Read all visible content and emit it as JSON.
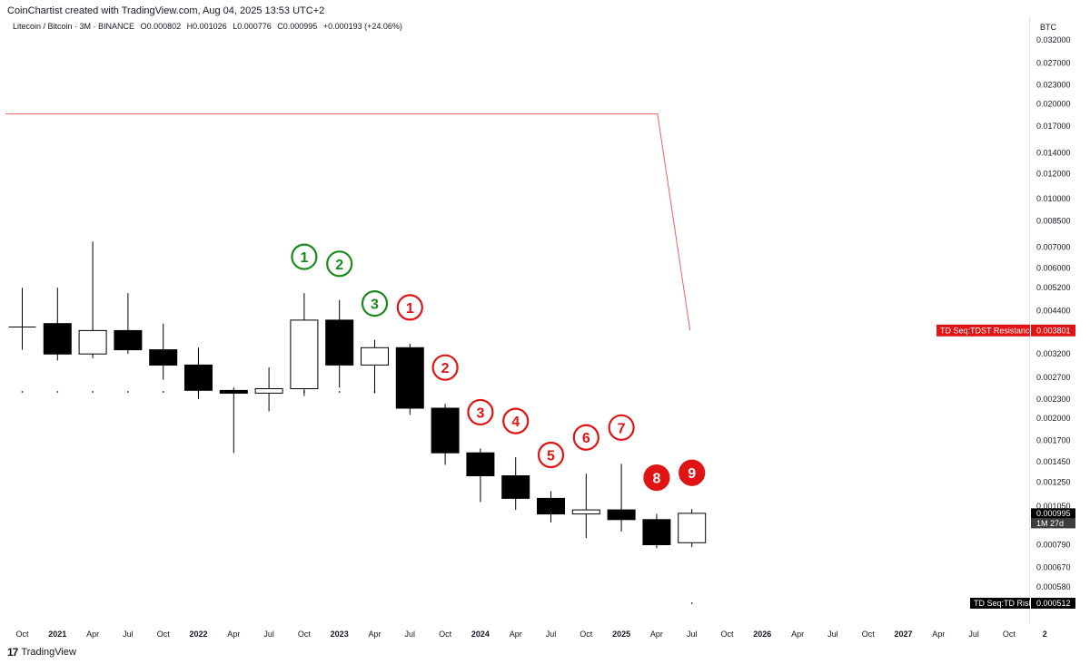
{
  "header": {
    "attribution": "CoinChartist created with TradingView.com, Aug 04, 2025 13:53 UTC+2",
    "symbol": "Litecoin / Bitcoin · 3M · BINANCE",
    "open": "O0.000802",
    "high": "H0.001026",
    "low": "L0.000776",
    "close": "C0.000995",
    "change": "+0.000193 (+24.06%)"
  },
  "footer": {
    "logo_text": "TradingView"
  },
  "colors": {
    "bear": "#000000",
    "bull": "#ffffff",
    "setup_buy": "#1a8a1a",
    "countdown": "#e01414",
    "resistance_line": "#f06060",
    "price_tag": "#000000",
    "resistance_tag": "#e01414"
  },
  "chart_data": {
    "type": "candlestick",
    "y_axis_unit": "BTC",
    "y_scale": "log",
    "x_tick_labels": [
      "Oct",
      "2021",
      "Apr",
      "Jul",
      "Oct",
      "2022",
      "Apr",
      "Jul",
      "Oct",
      "2023",
      "Apr",
      "Jul",
      "Oct",
      "2024",
      "Apr",
      "Jul",
      "Oct",
      "2025",
      "Apr",
      "Jul",
      "Oct",
      "2026",
      "Apr",
      "Jul",
      "Oct",
      "2027",
      "Apr",
      "Jul",
      "Oct",
      "2"
    ],
    "y_tick_labels": [
      "0.032000",
      "0.027000",
      "0.023000",
      "0.020000",
      "0.017000",
      "0.014000",
      "0.012000",
      "0.010000",
      "0.008500",
      "0.007000",
      "0.006000",
      "0.005200",
      "0.004400",
      "0.003200",
      "0.002700",
      "0.002300",
      "0.002000",
      "0.001700",
      "0.001450",
      "0.001250",
      "0.001050",
      "0.000790",
      "0.000670",
      "0.000580"
    ],
    "candles": [
      {
        "period": "2020-Q4",
        "open": 0.0039,
        "high": 0.0052,
        "low": 0.0033,
        "close": 0.0039
      },
      {
        "period": "2021-Q1",
        "open": 0.004,
        "high": 0.0052,
        "low": 0.00305,
        "close": 0.0032
      },
      {
        "period": "2021-Q2",
        "open": 0.0032,
        "high": 0.0073,
        "low": 0.0031,
        "close": 0.0038
      },
      {
        "period": "2021-Q3",
        "open": 0.0038,
        "high": 0.005,
        "low": 0.0032,
        "close": 0.0033
      },
      {
        "period": "2021-Q4",
        "open": 0.0033,
        "high": 0.004,
        "low": 0.00265,
        "close": 0.00295
      },
      {
        "period": "2022-Q1",
        "open": 0.00295,
        "high": 0.00335,
        "low": 0.0023,
        "close": 0.00245
      },
      {
        "period": "2022-Q2",
        "open": 0.00245,
        "high": 0.0025,
        "low": 0.00155,
        "close": 0.0024
      },
      {
        "period": "2022-Q3",
        "open": 0.0024,
        "high": 0.0029,
        "low": 0.0021,
        "close": 0.00248
      },
      {
        "period": "2022-Q4",
        "open": 0.00248,
        "high": 0.005,
        "low": 0.00235,
        "close": 0.0041
      },
      {
        "period": "2023-Q1",
        "open": 0.0041,
        "high": 0.00475,
        "low": 0.0025,
        "close": 0.00295
      },
      {
        "period": "2023-Q2",
        "open": 0.00295,
        "high": 0.00355,
        "low": 0.0024,
        "close": 0.00335
      },
      {
        "period": "2023-Q3",
        "open": 0.00335,
        "high": 0.00345,
        "low": 0.00205,
        "close": 0.00215
      },
      {
        "period": "2023-Q4",
        "open": 0.00215,
        "high": 0.00222,
        "low": 0.00142,
        "close": 0.00155
      },
      {
        "period": "2024-Q1",
        "open": 0.00155,
        "high": 0.0016,
        "low": 0.00108,
        "close": 0.00131
      },
      {
        "period": "2024-Q2",
        "open": 0.00131,
        "high": 0.0015,
        "low": 0.00102,
        "close": 0.00111
      },
      {
        "period": "2024-Q3",
        "open": 0.00111,
        "high": 0.00117,
        "low": 0.00093,
        "close": 0.00099
      },
      {
        "period": "2024-Q4",
        "open": 0.00099,
        "high": 0.00133,
        "low": 0.00083,
        "close": 0.00102
      },
      {
        "period": "2025-Q1",
        "open": 0.00102,
        "high": 0.00143,
        "low": 0.00087,
        "close": 0.00095
      },
      {
        "period": "2025-Q2",
        "open": 0.00095,
        "high": 0.00099,
        "low": 0.00077,
        "close": 0.00079
      },
      {
        "period": "2025-Q3",
        "open": 0.000802,
        "high": 0.001026,
        "low": 0.000776,
        "close": 0.000995
      }
    ],
    "td_setup_buy": [
      {
        "label": "1",
        "candle_index": 8
      },
      {
        "label": "2",
        "candle_index": 9
      },
      {
        "label": "3",
        "candle_index": 10
      }
    ],
    "td_countdown": [
      {
        "label": "1",
        "candle_index": 11,
        "filled": false
      },
      {
        "label": "2",
        "candle_index": 12,
        "filled": false
      },
      {
        "label": "3",
        "candle_index": 13,
        "filled": false
      },
      {
        "label": "4",
        "candle_index": 14,
        "filled": false
      },
      {
        "label": "5",
        "candle_index": 15,
        "filled": false
      },
      {
        "label": "6",
        "candle_index": 16,
        "filled": false
      },
      {
        "label": "7",
        "candle_index": 17,
        "filled": false
      },
      {
        "label": "8",
        "candle_index": 18,
        "filled": true
      },
      {
        "label": "9",
        "candle_index": 19,
        "filled": true
      }
    ],
    "tdst_resistance": {
      "label": "TD Seq:TDST Resistance",
      "value_label": "0.003801",
      "value": 0.003801,
      "prior_level": 0.0186
    },
    "td_risk": {
      "label": "TD Seq:TD Risk",
      "value_label": "0.000512",
      "value": 0.000512
    },
    "last_price": {
      "value_label": "0.000995",
      "countdown": "1M 27d"
    }
  }
}
